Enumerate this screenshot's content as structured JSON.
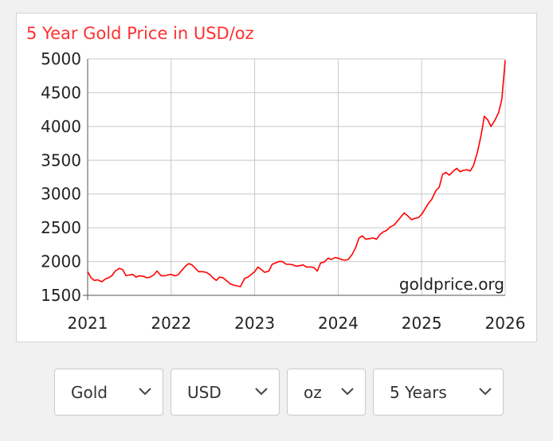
{
  "chart_data": {
    "type": "line",
    "title": "5 Year Gold Price in USD/oz",
    "watermark": "goldprice.org",
    "xlabel": "",
    "ylabel": "",
    "x_ticks": [
      "2021",
      "2022",
      "2023",
      "2024",
      "2025",
      "2026"
    ],
    "y_ticks": [
      1500,
      2000,
      2500,
      3000,
      3500,
      4000,
      4500,
      5000
    ],
    "xlim": [
      2021.0,
      2026.0
    ],
    "ylim": [
      1500,
      5000
    ],
    "grid": true,
    "legend": "none",
    "colors": {
      "line": "#ff0000",
      "title": "#ff3030",
      "grid": "#c8c8c8",
      "axis_text": "#222222"
    },
    "series": [
      {
        "x": [
          2021.0,
          2021.04,
          2021.08,
          2021.12,
          2021.17,
          2021.21,
          2021.25,
          2021.29,
          2021.33,
          2021.38,
          2021.42,
          2021.46,
          2021.5,
          2021.54,
          2021.58,
          2021.62,
          2021.67,
          2021.71,
          2021.75,
          2021.79,
          2021.83,
          2021.88,
          2021.92,
          2021.96,
          2022.0,
          2022.04,
          2022.08,
          2022.12,
          2022.17,
          2022.21,
          2022.25,
          2022.29,
          2022.33,
          2022.38,
          2022.42,
          2022.46,
          2022.5,
          2022.54,
          2022.58,
          2022.62,
          2022.67,
          2022.71,
          2022.75,
          2022.79,
          2022.83,
          2022.88,
          2022.92,
          2022.96,
          2023.0,
          2023.04,
          2023.08,
          2023.12,
          2023.17,
          2023.21,
          2023.25,
          2023.29,
          2023.33,
          2023.38,
          2023.42,
          2023.46,
          2023.5,
          2023.54,
          2023.58,
          2023.62,
          2023.67,
          2023.71,
          2023.75,
          2023.79,
          2023.83,
          2023.88,
          2023.92,
          2023.96,
          2024.0,
          2024.04,
          2024.08,
          2024.12,
          2024.17,
          2024.21,
          2024.25,
          2024.29,
          2024.33,
          2024.38,
          2024.42,
          2024.46,
          2024.5,
          2024.54,
          2024.58,
          2024.62,
          2024.67,
          2024.71,
          2024.75,
          2024.79,
          2024.83,
          2024.88,
          2024.92,
          2024.96,
          2025.0,
          2025.04,
          2025.08,
          2025.12,
          2025.17,
          2025.21,
          2025.25,
          2025.29,
          2025.33,
          2025.38,
          2025.42,
          2025.46,
          2025.5,
          2025.54,
          2025.58,
          2025.62,
          2025.67,
          2025.71,
          2025.75,
          2025.79,
          2025.83,
          2025.88,
          2025.92,
          2025.96,
          2026.0
        ],
        "y": [
          1850,
          1760,
          1720,
          1730,
          1700,
          1740,
          1760,
          1790,
          1860,
          1900,
          1880,
          1790,
          1800,
          1810,
          1770,
          1790,
          1780,
          1760,
          1770,
          1800,
          1860,
          1790,
          1790,
          1800,
          1810,
          1790,
          1800,
          1860,
          1930,
          1970,
          1950,
          1900,
          1850,
          1850,
          1840,
          1810,
          1760,
          1720,
          1770,
          1760,
          1710,
          1670,
          1650,
          1640,
          1630,
          1750,
          1770,
          1810,
          1850,
          1920,
          1880,
          1840,
          1860,
          1960,
          1980,
          2000,
          2000,
          1960,
          1960,
          1950,
          1930,
          1940,
          1950,
          1920,
          1920,
          1910,
          1860,
          1980,
          1990,
          2050,
          2030,
          2060,
          2050,
          2030,
          2020,
          2030,
          2110,
          2210,
          2350,
          2380,
          2330,
          2340,
          2350,
          2330,
          2400,
          2440,
          2460,
          2510,
          2540,
          2600,
          2660,
          2720,
          2680,
          2620,
          2640,
          2650,
          2700,
          2780,
          2860,
          2920,
          3050,
          3100,
          3290,
          3320,
          3280,
          3340,
          3380,
          3330,
          3350,
          3360,
          3340,
          3420,
          3630,
          3860,
          4150,
          4100,
          4000,
          4100,
          4200,
          4400,
          4980
        ]
      }
    ]
  },
  "controls": {
    "metal": "Gold",
    "currency": "USD",
    "unit": "oz",
    "period": "5 Years"
  }
}
